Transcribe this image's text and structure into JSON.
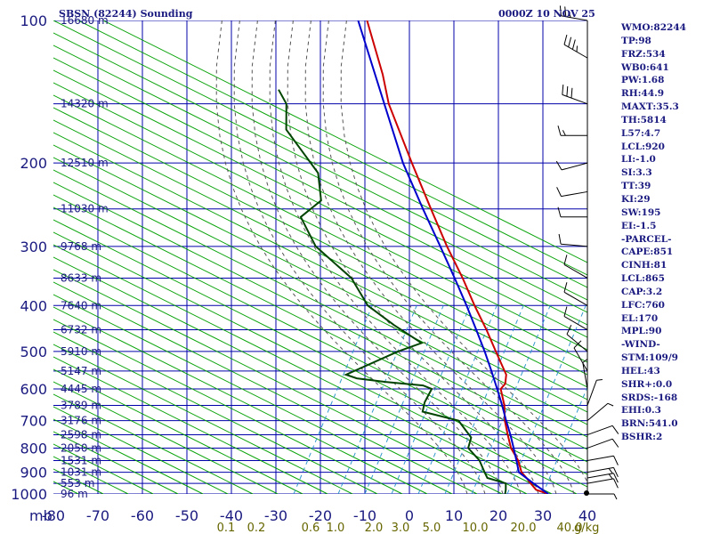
{
  "header": {
    "title": "SBSN (82244) Sounding",
    "valid_time": "0000Z 10 NOV 25"
  },
  "indices": [
    "WMO:82244",
    "TP:98",
    "FRZ:534",
    "WB0:641",
    "PW:1.68",
    "RH:44.9",
    "MAXT:35.3",
    "TH:5814",
    "L57:4.7",
    "LCL:920",
    "LI:-1.0",
    "SI:3.3",
    "TT:39",
    "KI:29",
    "SW:195",
    "EI:-1.5",
    "-PARCEL-",
    "CAPE:851",
    "CINH:81",
    "LCL:865",
    "CAP:3.2",
    "LFC:760",
    "EL:170",
    "MPL:90",
    "-WIND-",
    "STM:109/9",
    "HEL:43",
    "SHR+:0.0",
    "SRDS:-168",
    "EHI:0.3",
    "BRN:541.0",
    "BSHR:2"
  ],
  "chart_data": {
    "type": "line",
    "chart_kind": "skew-T log-P sounding",
    "ylabel": "mb",
    "pressure_ticks": [
      100,
      200,
      300,
      400,
      500,
      600,
      700,
      800,
      900,
      1000
    ],
    "pressure_tick_labels": [
      "100",
      "200",
      "300",
      "400",
      "500",
      "600",
      "700",
      "800",
      "900",
      "1000"
    ],
    "temperature_ticks": [
      -80,
      -70,
      -60,
      -50,
      -40,
      -30,
      -20,
      -10,
      0,
      10,
      20,
      30,
      40
    ],
    "temperature_tick_labels": [
      "-80",
      "-70",
      "-60",
      "-50",
      "-40",
      "-30",
      "-20",
      "-10",
      "0",
      "10",
      "20",
      "30",
      "40"
    ],
    "mixing_ratio_labels": [
      "0.1",
      "0.2",
      "0.6",
      "1.0",
      "2.0",
      "3.0",
      "5.0",
      "10.0",
      "20.0",
      "40.0"
    ],
    "mixing_ratio_suffix": "g/kg",
    "height_labels": [
      {
        "p": 100,
        "label": "16680 m"
      },
      {
        "p": 150,
        "label": "14320 m"
      },
      {
        "p": 200,
        "label": "12510 m"
      },
      {
        "p": 250,
        "label": "11030 m"
      },
      {
        "p": 300,
        "label": "9768 m"
      },
      {
        "p": 350,
        "label": "8633 m"
      },
      {
        "p": 400,
        "label": "7640 m"
      },
      {
        "p": 450,
        "label": "6732 m"
      },
      {
        "p": 500,
        "label": "5910 m"
      },
      {
        "p": 550,
        "label": "5147 m"
      },
      {
        "p": 600,
        "label": "4445 m"
      },
      {
        "p": 650,
        "label": "3789 m"
      },
      {
        "p": 700,
        "label": "3176 m"
      },
      {
        "p": 750,
        "label": "2598 m"
      },
      {
        "p": 800,
        "label": "2050 m"
      },
      {
        "p": 850,
        "label": "1531 m"
      },
      {
        "p": 900,
        "label": "1031 m"
      },
      {
        "p": 950,
        "label": "553 m"
      },
      {
        "p": 1000,
        "label": "96 m"
      }
    ],
    "colors": {
      "isobar": "#0000aa",
      "isotherm": "#0000aa",
      "dry_adiabat": "#00a000",
      "moist_adiabat": "#555555",
      "mixing_ratio": "#3399cc",
      "temperature": "#cc0000",
      "dewpoint": "#004400",
      "parcel": "#0000cc",
      "axis_labels": "#1a1a80",
      "mixing_ratio_labels": "#666600",
      "wind": "#000000"
    },
    "series": [
      {
        "name": "Temperature",
        "points": [
          {
            "p": 1000,
            "t": 31.2
          },
          {
            "p": 980,
            "t": 27.8
          },
          {
            "p": 950,
            "t": 25.6
          },
          {
            "p": 925,
            "t": 23.8
          },
          {
            "p": 900,
            "t": 21.8
          },
          {
            "p": 850,
            "t": 19.2
          },
          {
            "p": 800,
            "t": 15.6
          },
          {
            "p": 750,
            "t": 12.8
          },
          {
            "p": 700,
            "t": 9.9
          },
          {
            "p": 650,
            "t": 7.4
          },
          {
            "p": 600,
            "t": 4.0
          },
          {
            "p": 585,
            "t": 4.2
          },
          {
            "p": 560,
            "t": 3.0
          },
          {
            "p": 500,
            "t": -3.0
          },
          {
            "p": 450,
            "t": -8.5
          },
          {
            "p": 400,
            "t": -15.0
          },
          {
            "p": 350,
            "t": -22.0
          },
          {
            "p": 300,
            "t": -30.5
          },
          {
            "p": 250,
            "t": -40.0
          },
          {
            "p": 200,
            "t": -51.5
          },
          {
            "p": 150,
            "t": -66.0
          },
          {
            "p": 130,
            "t": -72.0
          },
          {
            "p": 100,
            "t": -84.0
          }
        ]
      },
      {
        "name": "Dewpoint",
        "points": [
          {
            "p": 1000,
            "t": 21.5
          },
          {
            "p": 980,
            "t": 21.0
          },
          {
            "p": 950,
            "t": 20.0
          },
          {
            "p": 925,
            "t": 15.0
          },
          {
            "p": 900,
            "t": 13.5
          },
          {
            "p": 850,
            "t": 10.5
          },
          {
            "p": 800,
            "t": 6.0
          },
          {
            "p": 760,
            "t": 5.0
          },
          {
            "p": 700,
            "t": -0.5
          },
          {
            "p": 670,
            "t": -10.0
          },
          {
            "p": 640,
            "t": -11.0
          },
          {
            "p": 600,
            "t": -11.5
          },
          {
            "p": 590,
            "t": -14.0
          },
          {
            "p": 580,
            "t": -23.0
          },
          {
            "p": 570,
            "t": -30.0
          },
          {
            "p": 560,
            "t": -33.0
          },
          {
            "p": 500,
            "t": -25.0
          },
          {
            "p": 480,
            "t": -21.0
          },
          {
            "p": 440,
            "t": -30.0
          },
          {
            "p": 400,
            "t": -39.0
          },
          {
            "p": 350,
            "t": -47.0
          },
          {
            "p": 300,
            "t": -60.0
          },
          {
            "p": 260,
            "t": -68.0
          },
          {
            "p": 240,
            "t": -66.0
          },
          {
            "p": 210,
            "t": -71.0
          },
          {
            "p": 170,
            "t": -85.0
          },
          {
            "p": 150,
            "t": -89.0
          },
          {
            "p": 140,
            "t": -93.0
          }
        ]
      },
      {
        "name": "Parcel",
        "points": [
          {
            "p": 1000,
            "t": 31.2
          },
          {
            "p": 950,
            "t": 26.2
          },
          {
            "p": 900,
            "t": 21.2
          },
          {
            "p": 850,
            "t": 18.8
          },
          {
            "p": 800,
            "t": 16.2
          },
          {
            "p": 750,
            "t": 13.4
          },
          {
            "p": 700,
            "t": 10.2
          },
          {
            "p": 650,
            "t": 6.9
          },
          {
            "p": 600,
            "t": 3.2
          },
          {
            "p": 550,
            "t": -0.9
          },
          {
            "p": 500,
            "t": -5.5
          },
          {
            "p": 450,
            "t": -10.8
          },
          {
            "p": 400,
            "t": -16.8
          },
          {
            "p": 350,
            "t": -23.8
          },
          {
            "p": 300,
            "t": -32.0
          },
          {
            "p": 250,
            "t": -41.8
          },
          {
            "p": 200,
            "t": -53.5
          },
          {
            "p": 150,
            "t": -67.0
          },
          {
            "p": 100,
            "t": -86.0
          }
        ]
      }
    ],
    "winds": [
      {
        "p": 100,
        "dir": 280,
        "kt": 25
      },
      {
        "p": 120,
        "dir": 300,
        "kt": 35
      },
      {
        "p": 150,
        "dir": 290,
        "kt": 30
      },
      {
        "p": 175,
        "dir": 270,
        "kt": 15
      },
      {
        "p": 200,
        "dir": 255,
        "kt": 10
      },
      {
        "p": 230,
        "dir": 260,
        "kt": 10
      },
      {
        "p": 260,
        "dir": 270,
        "kt": 10
      },
      {
        "p": 300,
        "dir": 275,
        "kt": 10
      },
      {
        "p": 350,
        "dir": 300,
        "kt": 10
      },
      {
        "p": 400,
        "dir": 300,
        "kt": 10
      },
      {
        "p": 450,
        "dir": 300,
        "kt": 10
      },
      {
        "p": 500,
        "dir": 310,
        "kt": 10
      },
      {
        "p": 550,
        "dir": 330,
        "kt": 10
      },
      {
        "p": 600,
        "dir": 350,
        "kt": 5
      },
      {
        "p": 650,
        "dir": 20,
        "kt": 5
      },
      {
        "p": 700,
        "dir": 50,
        "kt": 5
      },
      {
        "p": 750,
        "dir": 70,
        "kt": 10
      },
      {
        "p": 800,
        "dir": 70,
        "kt": 10
      },
      {
        "p": 850,
        "dir": 80,
        "kt": 10
      },
      {
        "p": 900,
        "dir": 80,
        "kt": 15
      },
      {
        "p": 925,
        "dir": 80,
        "kt": 15
      },
      {
        "p": 950,
        "dir": 80,
        "kt": 10
      },
      {
        "p": 1000,
        "dir": 90,
        "kt": 5
      }
    ]
  }
}
